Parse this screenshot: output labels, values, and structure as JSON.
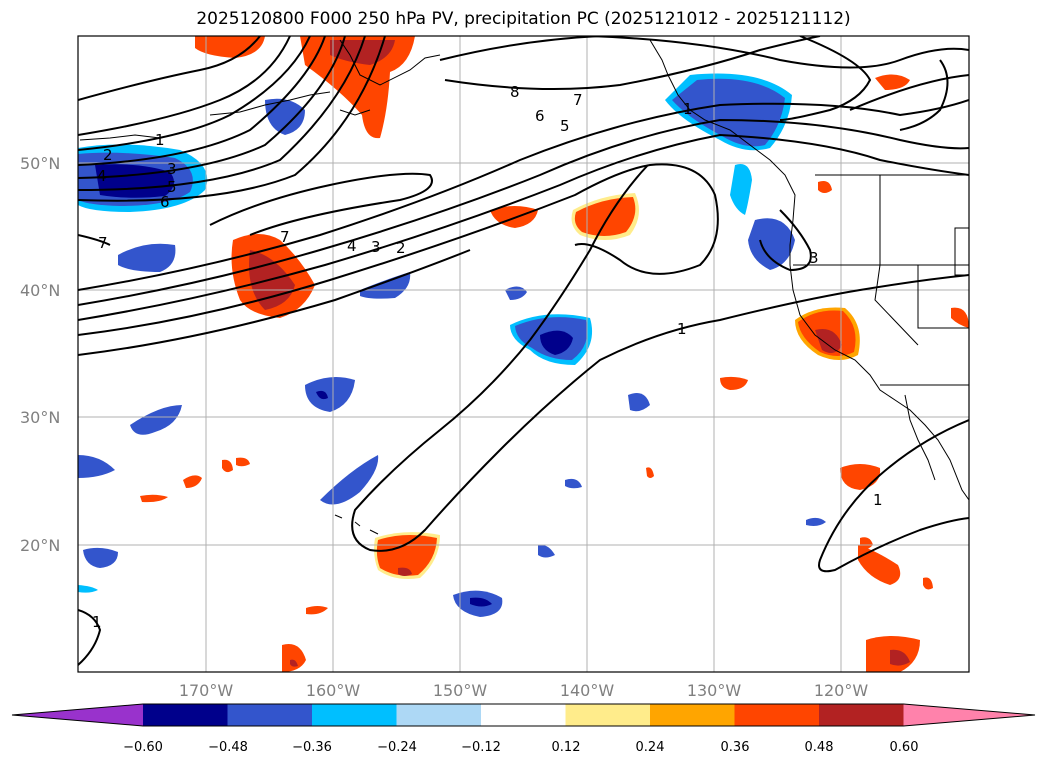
{
  "title": "2025120800 F000 250 hPa PV, precipitation PC (2025121012 - 2025121112)",
  "map": {
    "lat_labels": [
      "50°N",
      "40°N",
      "30°N",
      "20°N"
    ],
    "lon_labels": [
      "170°W",
      "160°W",
      "150°W",
      "140°W",
      "130°W",
      "120°W"
    ],
    "contour_labels": [
      "1",
      "2",
      "4",
      "3",
      "5",
      "6",
      "7",
      "8",
      "7",
      "6",
      "5",
      "7",
      "4",
      "3",
      "2",
      "1",
      "3",
      "1",
      "1",
      "1"
    ]
  },
  "colorbar": {
    "ticks": [
      "−0.60",
      "−0.48",
      "−0.36",
      "−0.24",
      "−0.12",
      "0.12",
      "0.24",
      "0.36",
      "0.48",
      "0.60"
    ],
    "colors": [
      "#9932cc",
      "#00008b",
      "#3355cc",
      "#00bfff",
      "#add8f5",
      "#ffffff",
      "#ffec8b",
      "#ffa500",
      "#ff4500",
      "#b22222",
      "#ff82ab"
    ]
  }
}
